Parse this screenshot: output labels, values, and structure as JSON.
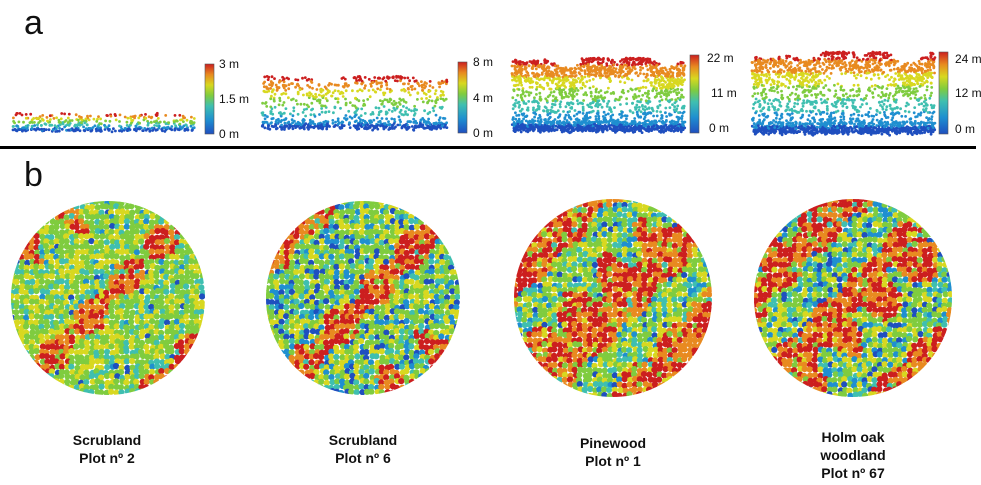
{
  "panels": {
    "a": "a",
    "b": "b"
  },
  "profiles": [
    {
      "id": "scrubland-2",
      "ticks": [
        "3 m",
        "1.5 m",
        "0 m"
      ],
      "max_height_m": 3
    },
    {
      "id": "scrubland-6",
      "ticks": [
        "8 m",
        "4 m",
        "0 m"
      ],
      "max_height_m": 8
    },
    {
      "id": "pinewood-1",
      "ticks": [
        "22 m",
        "11 m",
        "0 m"
      ],
      "max_height_m": 22
    },
    {
      "id": "holm-oak-67",
      "ticks": [
        "24 m",
        "12 m",
        "0 m"
      ],
      "max_height_m": 24
    }
  ],
  "plots": [
    {
      "lines": [
        "Scrubland",
        "Plot nº 2"
      ]
    },
    {
      "lines": [
        "Scrubland",
        "Plot nº 6"
      ]
    },
    {
      "lines": [
        "Pinewood",
        "Plot nº 1"
      ]
    },
    {
      "lines": [
        "Holm oak",
        "woodland",
        "Plot nº 67"
      ]
    }
  ],
  "colors": {
    "ramp": [
      "#1f4fbf",
      "#1f8fd0",
      "#3fbfb0",
      "#7fcc3f",
      "#d8d820",
      "#e88a20",
      "#cc1f1f"
    ]
  }
}
